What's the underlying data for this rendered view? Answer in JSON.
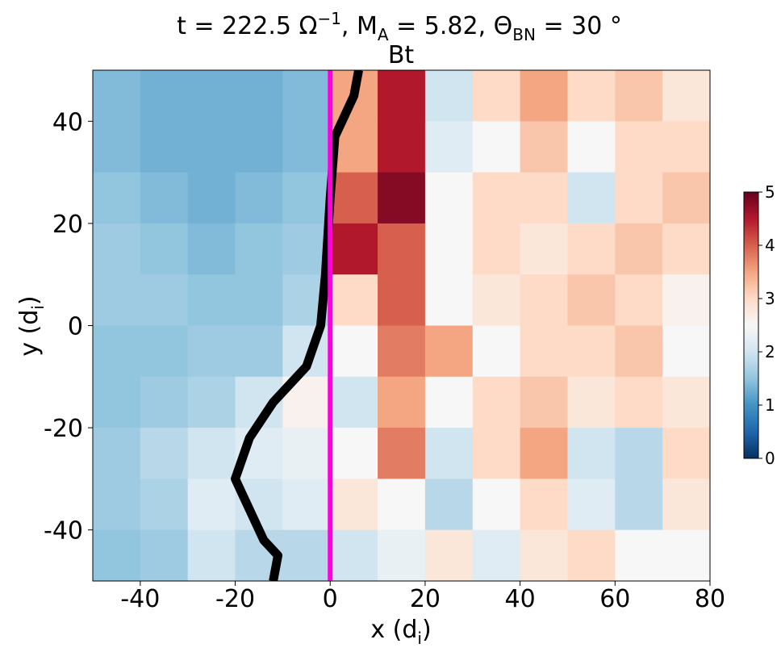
{
  "chart_data": {
    "type": "heatmap",
    "title": [
      "t = 222.5 Ω",
      "−1",
      ", M",
      "A",
      " = 5.82, Θ",
      "BN",
      " = 30 °"
    ],
    "subtitle": "Bt",
    "x_label": [
      "x (d",
      "i",
      ")"
    ],
    "y_label": [
      "y (d",
      "i",
      ")"
    ],
    "xlim": [
      -50,
      80
    ],
    "ylim": [
      -50,
      50
    ],
    "xticks": [
      -40,
      -20,
      0,
      20,
      40,
      60,
      80
    ],
    "yticks": [
      -40,
      -20,
      0,
      20,
      40
    ],
    "x": [
      -45,
      -35,
      -25,
      -15,
      -5,
      5,
      15,
      25,
      35,
      45,
      55,
      65,
      75
    ],
    "y": [
      45,
      35,
      25,
      15,
      5,
      -5,
      -15,
      -25,
      -35,
      -45
    ],
    "z": [
      [
        1.4,
        1.3,
        1.3,
        1.3,
        1.4,
        3.5,
        4.5,
        2.0,
        3.0,
        3.5,
        3.0,
        3.2,
        2.8
      ],
      [
        1.4,
        1.3,
        1.3,
        1.3,
        1.4,
        3.5,
        4.5,
        2.2,
        2.5,
        3.2,
        2.5,
        3.0,
        3.0
      ],
      [
        1.5,
        1.4,
        1.3,
        1.4,
        1.5,
        4.0,
        4.8,
        2.5,
        3.0,
        3.0,
        2.0,
        3.0,
        3.2
      ],
      [
        1.6,
        1.5,
        1.4,
        1.5,
        1.6,
        4.5,
        4.0,
        2.5,
        3.0,
        2.8,
        3.0,
        3.2,
        3.0
      ],
      [
        1.6,
        1.6,
        1.5,
        1.5,
        1.7,
        3.0,
        4.0,
        2.5,
        2.8,
        3.0,
        3.2,
        3.0,
        2.6
      ],
      [
        1.5,
        1.5,
        1.6,
        1.6,
        2.0,
        2.5,
        3.8,
        3.5,
        2.5,
        3.0,
        3.0,
        3.2,
        2.5
      ],
      [
        1.5,
        1.6,
        1.7,
        2.0,
        2.6,
        2.0,
        3.5,
        2.5,
        3.0,
        3.2,
        2.8,
        3.0,
        2.8
      ],
      [
        1.6,
        1.8,
        2.0,
        2.2,
        2.3,
        2.5,
        3.8,
        2.0,
        3.0,
        3.5,
        2.0,
        1.8,
        3.0
      ],
      [
        1.6,
        1.7,
        2.2,
        2.0,
        2.2,
        2.8,
        2.5,
        1.8,
        2.5,
        3.0,
        2.2,
        1.8,
        2.8
      ],
      [
        1.5,
        1.6,
        2.0,
        1.8,
        1.8,
        2.0,
        2.3,
        2.8,
        2.2,
        2.8,
        3.0,
        2.5,
        2.5
      ]
    ],
    "zlim": [
      0,
      5
    ],
    "zticks": [
      0,
      1,
      2,
      3,
      4,
      5
    ],
    "colorscale": [
      "#053061",
      "#2166ac",
      "#4393c3",
      "#92c5de",
      "#d1e5f0",
      "#f7f7f7",
      "#fddbc7",
      "#f4a582",
      "#d6604d",
      "#b2182b",
      "#67001f"
    ],
    "lines": [
      {
        "color": "#000000",
        "x": [
          6,
          5,
          1,
          0,
          -1,
          -2,
          -5,
          -12,
          -17,
          -20,
          -17,
          -14,
          -11,
          -12
        ],
        "y": [
          50,
          45,
          37,
          25,
          10,
          0,
          -8,
          -15,
          -22,
          -30,
          -36,
          -42,
          -45,
          -50
        ]
      },
      {
        "color": "#ff00dd",
        "x": [
          0,
          0
        ],
        "y": [
          -50,
          50
        ]
      }
    ]
  }
}
